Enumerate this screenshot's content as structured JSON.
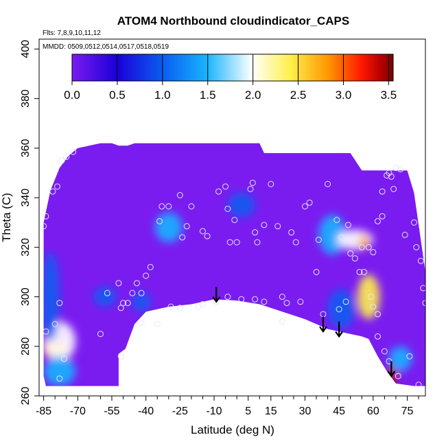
{
  "chart_data": {
    "type": "heatmap",
    "title": "ATOM4 Northbound cloudindicator_CAPS",
    "subtitle_flights": "Flts: 7,8,9,10,11,12",
    "subtitle_dates": "MMDD: 0509,0512,0514,0517,0518,0519",
    "xlabel": "Latitude (deg N)",
    "ylabel": "Theta (C)",
    "xlim": [
      -87,
      83
    ],
    "ylim": [
      260,
      404
    ],
    "x_ticks": [
      -85,
      -70,
      -55,
      -40,
      -25,
      -10,
      5,
      15,
      30,
      45,
      60,
      75
    ],
    "x_tick_labels": [
      "-85",
      "-70",
      "-55",
      "-40",
      "-25",
      "-10",
      "5",
      "15",
      "30",
      "45",
      "60",
      "75"
    ],
    "y_ticks": [
      260,
      280,
      300,
      320,
      340,
      360,
      380,
      400
    ],
    "y_tick_labels": [
      "260",
      "280",
      "300",
      "320",
      "340",
      "360",
      "380",
      "400"
    ],
    "colorbar": {
      "min": 0.0,
      "max": 3.55,
      "ticks": [
        0.0,
        0.5,
        1.0,
        1.5,
        2.0,
        2.5,
        3.0,
        3.5
      ],
      "tick_labels": [
        "0.0",
        "0.5",
        "1.0",
        "1.5",
        "2.0",
        "2.5",
        "3.0",
        "3.5"
      ],
      "colors": [
        "#7a1cf0",
        "#1a00d8",
        "#0a5cf0",
        "#18b4ff",
        "#ffffff",
        "#fff04a",
        "#ff9400",
        "#ff1a00",
        "#b80000",
        "#7a0000"
      ]
    },
    "field_boundary": {
      "upper": [
        [
          -85,
          330
        ],
        [
          -82,
          343
        ],
        [
          -78,
          352
        ],
        [
          -74,
          357
        ],
        [
          -70,
          360
        ],
        [
          -60,
          362
        ],
        [
          -55,
          362
        ],
        [
          -52,
          361
        ],
        [
          -48,
          361
        ],
        [
          -45,
          362
        ],
        [
          -10,
          362
        ],
        [
          10,
          362
        ],
        [
          12,
          358
        ],
        [
          50,
          358
        ],
        [
          55,
          351
        ],
        [
          75,
          351
        ],
        [
          78,
          342
        ],
        [
          83,
          310
        ]
      ],
      "lower": [
        [
          -85,
          280
        ],
        [
          -85,
          268
        ],
        [
          -84,
          264
        ],
        [
          -52,
          264
        ],
        [
          -52,
          277
        ],
        [
          -49,
          279
        ],
        [
          -45,
          289
        ],
        [
          -40,
          294
        ],
        [
          -30,
          296
        ],
        [
          -20,
          297
        ],
        [
          -10,
          299
        ],
        [
          0,
          298.5
        ],
        [
          10,
          297
        ],
        [
          20,
          294
        ],
        [
          30,
          291
        ],
        [
          40,
          287
        ],
        [
          50,
          285
        ],
        [
          55,
          284
        ],
        [
          58,
          283
        ],
        [
          62,
          276
        ],
        [
          66,
          270
        ],
        [
          70,
          265
        ],
        [
          78,
          264
        ],
        [
          83,
          264
        ]
      ]
    },
    "cloud_regions": [
      {
        "lat": -80,
        "theta": 279,
        "value": 2.4,
        "dlat": 6,
        "dtheta": 4
      },
      {
        "lat": -78,
        "theta": 282,
        "value": 1.6,
        "dlat": 7,
        "dtheta": 8
      },
      {
        "lat": -78,
        "theta": 270,
        "value": 1.3,
        "dlat": 7,
        "dtheta": 6
      },
      {
        "lat": -82,
        "theta": 300,
        "value": 0.8,
        "dlat": 4,
        "dtheta": 18
      },
      {
        "lat": -58,
        "theta": 300,
        "value": 0.8,
        "dlat": 5,
        "dtheta": 4
      },
      {
        "lat": -42,
        "theta": 298,
        "value": 0.9,
        "dlat": 4,
        "dtheta": 4
      },
      {
        "lat": -30,
        "theta": 328,
        "value": 1.1,
        "dlat": 6,
        "dtheta": 6
      },
      {
        "lat": 2,
        "theta": 337,
        "value": 0.7,
        "dlat": 6,
        "dtheta": 5
      },
      {
        "lat": 42,
        "theta": 325,
        "value": 1.0,
        "dlat": 6,
        "dtheta": 8
      },
      {
        "lat": 52,
        "theta": 323,
        "value": 1.4,
        "dlat": 8,
        "dtheta": 4
      },
      {
        "lat": 56,
        "theta": 322,
        "value": 2.4,
        "dlat": 2,
        "dtheta": 3
      },
      {
        "lat": 58,
        "theta": 300,
        "value": 2.0,
        "dlat": 5,
        "dtheta": 9
      },
      {
        "lat": 46,
        "theta": 295,
        "value": 0.9,
        "dlat": 6,
        "dtheta": 8
      },
      {
        "lat": 68,
        "theta": 268,
        "value": 3.3,
        "dlat": 3,
        "dtheta": 3
      },
      {
        "lat": 72,
        "theta": 275,
        "value": 1.1,
        "dlat": 5,
        "dtheta": 5
      }
    ],
    "obs_points": [
      [
        -85,
        328.5
      ],
      [
        -84,
        332.5
      ],
      [
        -81,
        342.5
      ],
      [
        -79,
        344.5
      ],
      [
        -77,
        355
      ],
      [
        -75,
        356.5
      ],
      [
        -72,
        358.5
      ],
      [
        -84,
        286
      ],
      [
        -80,
        289
      ],
      [
        -78,
        297.5
      ],
      [
        -78,
        282
      ],
      [
        -76,
        275
      ],
      [
        -78,
        267
      ],
      [
        -57,
        301.5
      ],
      [
        -52,
        305.5
      ],
      [
        -51,
        295.5
      ],
      [
        -50,
        297.5
      ],
      [
        -48,
        297.5
      ],
      [
        -46,
        301.5
      ],
      [
        -51,
        276
      ],
      [
        -44,
        305.5
      ],
      [
        -42,
        301.5
      ],
      [
        -42,
        289.5
      ],
      [
        -40,
        308.5
      ],
      [
        -38,
        312
      ],
      [
        -34,
        330.5
      ],
      [
        -33,
        336.5
      ],
      [
        -30,
        336.5
      ],
      [
        -25,
        341
      ],
      [
        -24,
        324
      ],
      [
        -22,
        328.5
      ],
      [
        -20,
        336.5
      ],
      [
        -15,
        326.5
      ],
      [
        -13,
        324.5
      ],
      [
        -8,
        342.5
      ],
      [
        -5,
        344.5
      ],
      [
        -4,
        335.5
      ],
      [
        -3,
        322
      ],
      [
        0,
        322
      ],
      [
        -1,
        331
      ],
      [
        6,
        343.5
      ],
      [
        7,
        346
      ],
      [
        8,
        326
      ],
      [
        9,
        322
      ],
      [
        12,
        329
      ],
      [
        15,
        345.5
      ],
      [
        18,
        328.5
      ],
      [
        -9,
        298
      ],
      [
        -4,
        300
      ],
      [
        2,
        299
      ],
      [
        8,
        299
      ],
      [
        12,
        298
      ],
      [
        24,
        326
      ],
      [
        26,
        322
      ],
      [
        30,
        336.5
      ],
      [
        32,
        338
      ],
      [
        36,
        323
      ],
      [
        40,
        345.5
      ],
      [
        44,
        331
      ],
      [
        46,
        324
      ],
      [
        49,
        329
      ],
      [
        50,
        317.5
      ],
      [
        52,
        315.5
      ],
      [
        54,
        310
      ],
      [
        56,
        310
      ],
      [
        55,
        320
      ],
      [
        58,
        320
      ],
      [
        60,
        318
      ],
      [
        62,
        330.5
      ],
      [
        64,
        332.5
      ],
      [
        64,
        342.5
      ],
      [
        66,
        349
      ],
      [
        67,
        350
      ],
      [
        68,
        348.5
      ],
      [
        69,
        343.5
      ],
      [
        70,
        352
      ],
      [
        72,
        351.5
      ],
      [
        74,
        325
      ],
      [
        78,
        330
      ],
      [
        79,
        320
      ],
      [
        81,
        314.5
      ],
      [
        82,
        303.5
      ],
      [
        83,
        297.5
      ],
      [
        59,
        300
      ],
      [
        60,
        296
      ],
      [
        62,
        293
      ],
      [
        62,
        284
      ],
      [
        65,
        278
      ],
      [
        67,
        274
      ],
      [
        71,
        268
      ],
      [
        76,
        276
      ],
      [
        80,
        264.5
      ],
      [
        -35,
        289
      ],
      [
        -29,
        296
      ],
      [
        -25,
        295.5
      ],
      [
        -17,
        296
      ],
      [
        -15,
        297
      ],
      [
        20,
        300
      ],
      [
        22,
        297.5
      ],
      [
        28,
        298
      ],
      [
        38,
        293
      ],
      [
        45,
        295
      ],
      [
        48,
        298
      ],
      [
        35,
        310
      ],
      [
        20,
        290
      ],
      [
        -60,
        285
      ]
    ],
    "arrows": [
      {
        "lat": -9,
        "theta_top": 304,
        "theta_tip": 298
      },
      {
        "lat": 38,
        "theta_top": 292,
        "theta_tip": 286
      },
      {
        "lat": 45,
        "theta_top": 290,
        "theta_tip": 284
      },
      {
        "lat": 68,
        "theta_top": 274,
        "theta_tip": 268
      }
    ]
  }
}
